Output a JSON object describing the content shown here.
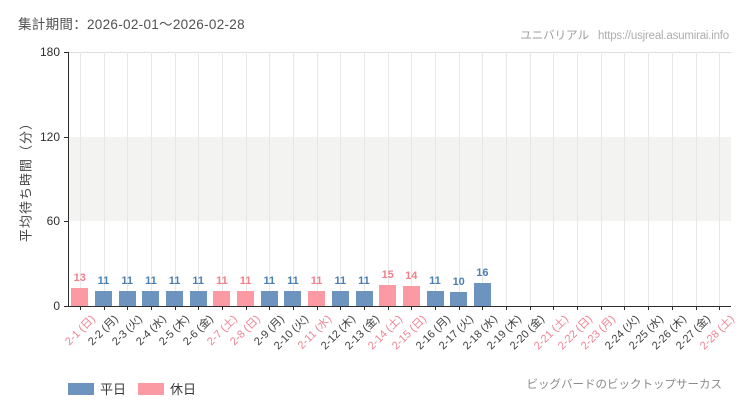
{
  "header": {
    "period_label": "集計期間：2026-02-01～2026-02-28",
    "site_name": "ユニバリアル",
    "site_url": "https://usjreal.asumirai.info"
  },
  "footer": {
    "attraction_name": "ビッグバードのビックトップサーカス"
  },
  "legend": {
    "items": [
      {
        "label": "平日",
        "color": "#6C94BE"
      },
      {
        "label": "休日",
        "color": "#FB9AA2"
      }
    ]
  },
  "chart_data": {
    "type": "bar",
    "title": "集計期間：2026-02-01～2026-02-28",
    "xlabel": "",
    "ylabel": "平均待ち時間（分）",
    "ylim": [
      0,
      180
    ],
    "yticks": [
      0,
      60,
      120,
      180
    ],
    "grid": true,
    "highlight_band": {
      "from": 60,
      "to": 120
    },
    "legend_position": "bottom-left",
    "categories": [
      "2-1 (日)",
      "2-2 (月)",
      "2-3 (火)",
      "2-4 (水)",
      "2-5 (木)",
      "2-6 (金)",
      "2-7 (土)",
      "2-8 (日)",
      "2-9 (月)",
      "2-10 (火)",
      "2-11 (水)",
      "2-12 (木)",
      "2-13 (金)",
      "2-14 (土)",
      "2-15 (日)",
      "2-16 (月)",
      "2-17 (火)",
      "2-18 (水)",
      "2-19 (木)",
      "2-20 (金)",
      "2-21 (土)",
      "2-22 (日)",
      "2-23 (月)",
      "2-24 (火)",
      "2-25 (水)",
      "2-26 (木)",
      "2-27 (金)",
      "2-28 (土)"
    ],
    "day_types": [
      "holiday",
      "weekday",
      "weekday",
      "weekday",
      "weekday",
      "weekday",
      "holiday",
      "holiday",
      "weekday",
      "weekday",
      "holiday",
      "weekday",
      "weekday",
      "holiday",
      "holiday",
      "weekday",
      "weekday",
      "weekday",
      "weekday",
      "weekday",
      "holiday",
      "holiday",
      "holiday",
      "weekday",
      "weekday",
      "weekday",
      "weekday",
      "holiday"
    ],
    "values": [
      13,
      11,
      11,
      11,
      11,
      11,
      11,
      11,
      11,
      11,
      11,
      11,
      11,
      15,
      14,
      11,
      10,
      16,
      null,
      null,
      null,
      null,
      null,
      null,
      null,
      null,
      null,
      null
    ],
    "series_legend": [
      "平日",
      "休日"
    ],
    "palette": {
      "weekday_bar": "#6C94BE",
      "holiday_bar": "#FB9AA2",
      "weekday_value_label": "#4C7FB1",
      "holiday_value_label": "#F0808B",
      "weekday_tick_label": "#3E3E3E",
      "holiday_tick_label": "#EE8393"
    }
  }
}
